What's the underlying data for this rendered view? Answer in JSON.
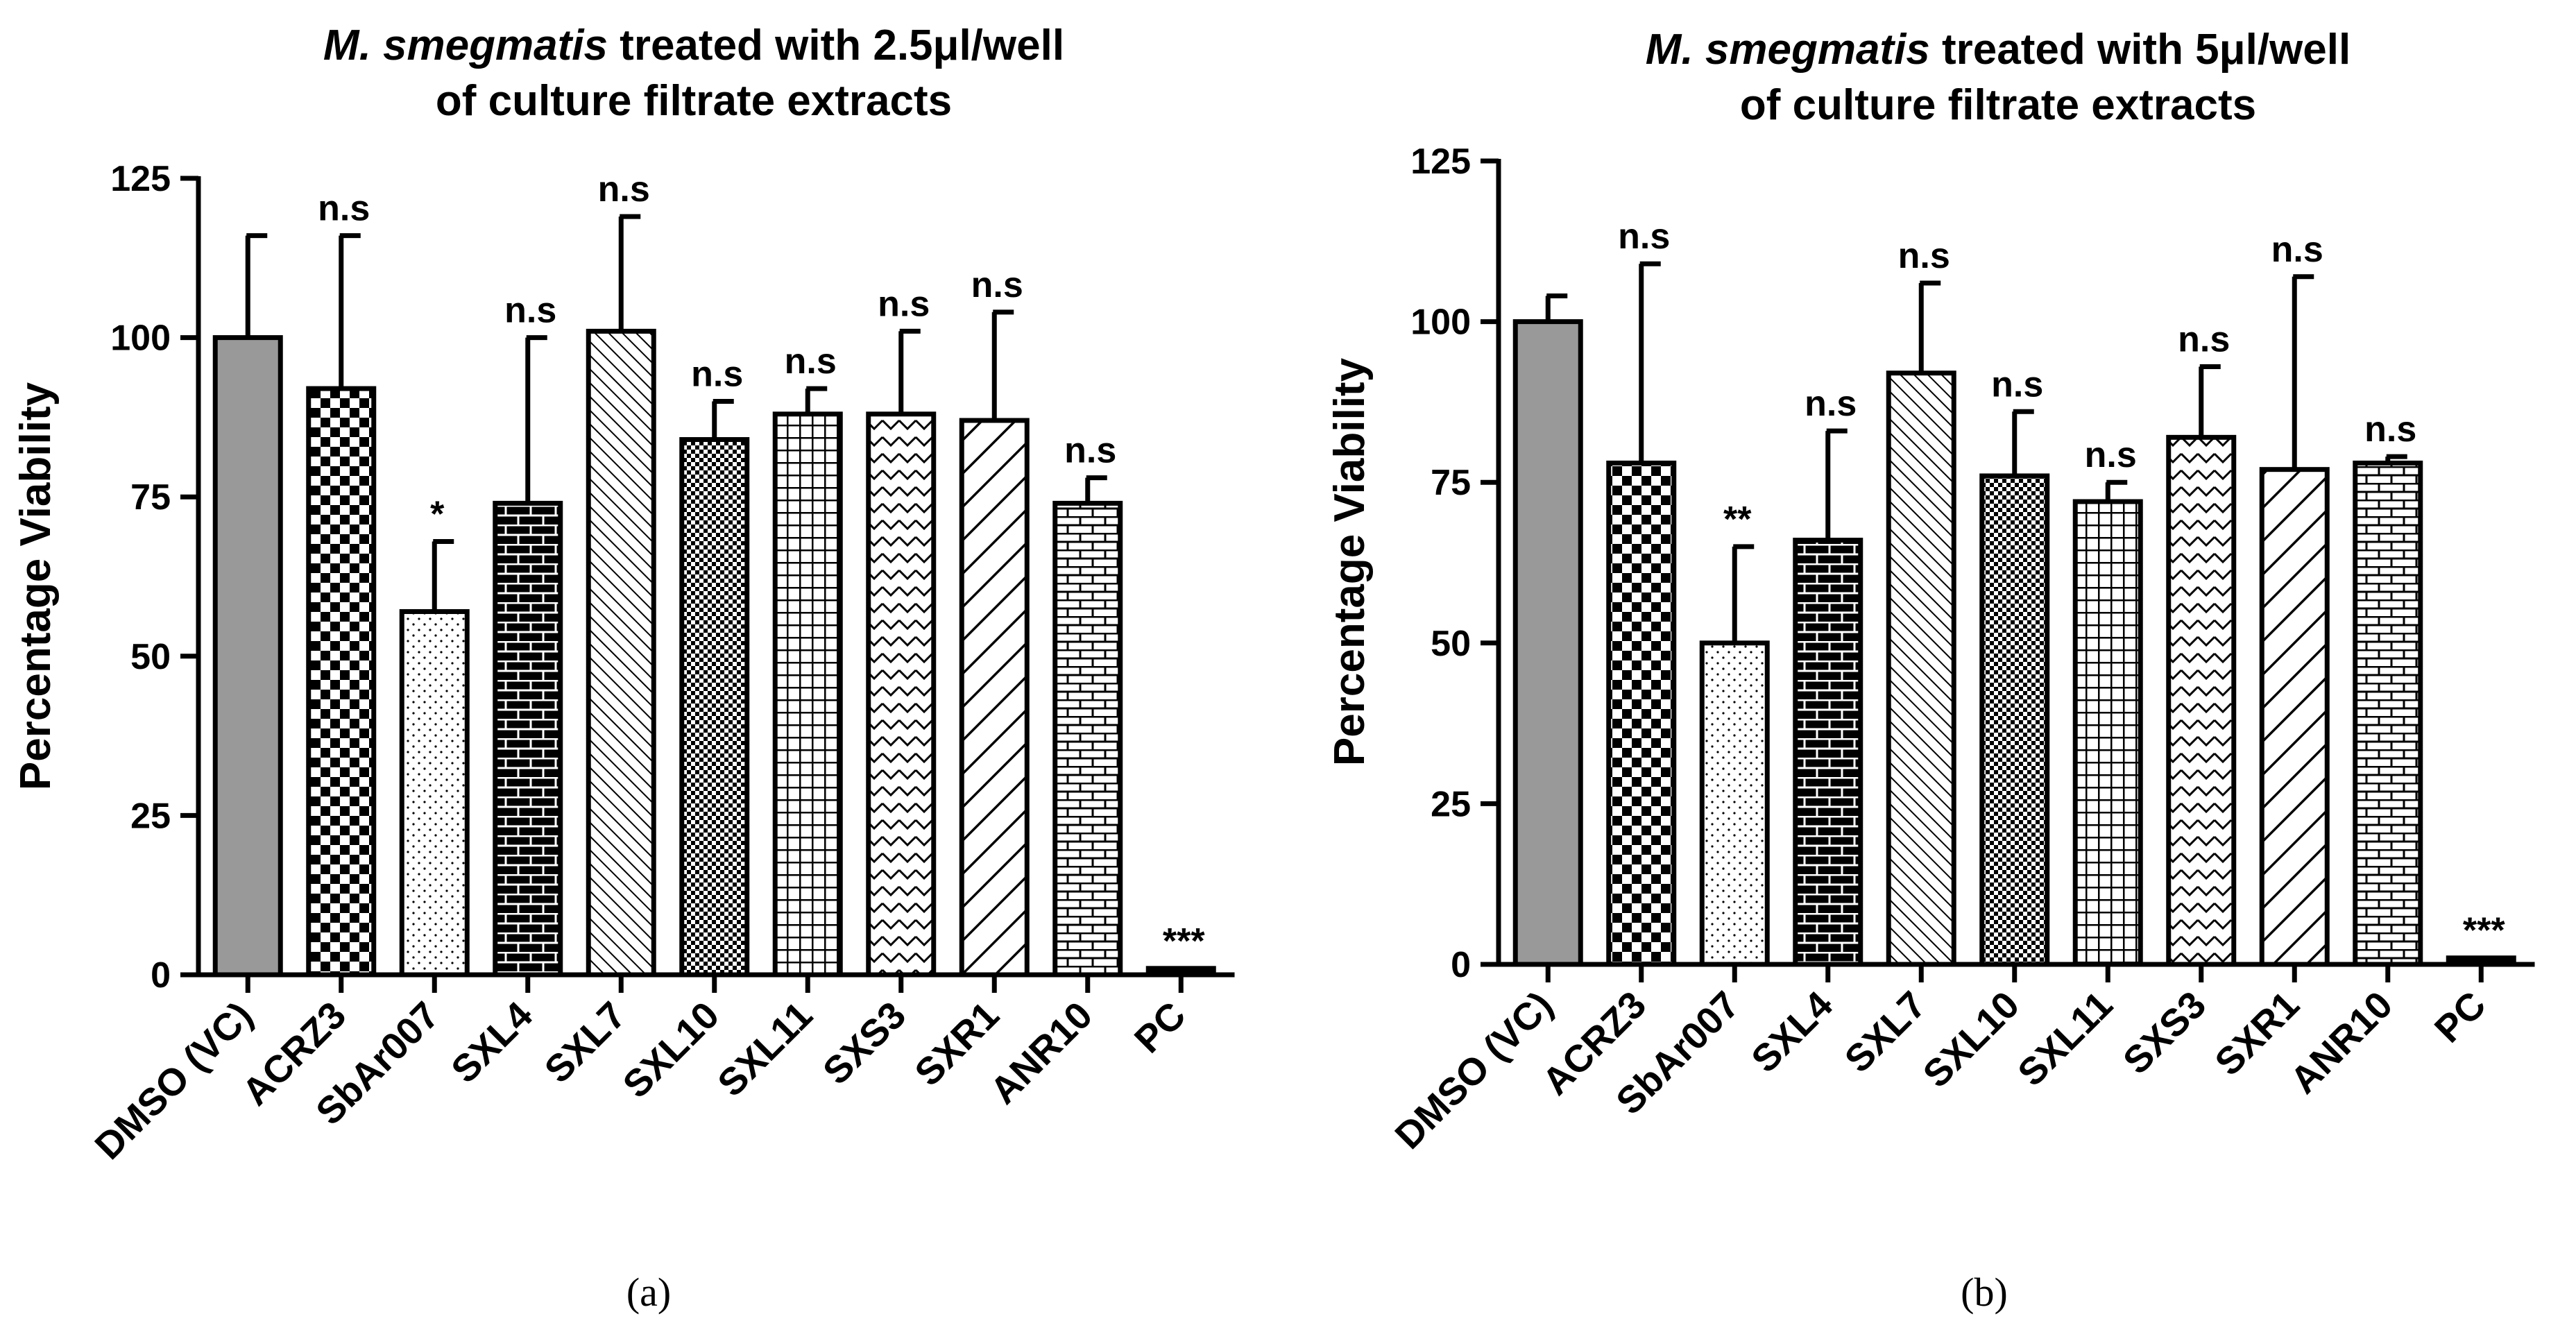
{
  "chart_data": [
    {
      "type": "bar",
      "panel_label": "(a)",
      "title": {
        "italic": "M. smegmatis",
        "rest_line1": " treated with 2.5μl/well",
        "line2": "of culture filtrate extracts"
      },
      "xlabel": "",
      "ylabel": "Percentage Viability",
      "ylim": [
        0,
        125
      ],
      "yticks": [
        "0",
        "25",
        "50",
        "75",
        "100",
        "125"
      ],
      "categories": [
        "DMSO (VC)",
        "ACRZ3",
        "SbAr007",
        "SXL4",
        "SXL7",
        "SXL10",
        "SXL11",
        "SXS3",
        "SXR1",
        "ANR10",
        "PC"
      ],
      "values": [
        100,
        92,
        57,
        74,
        101,
        84,
        88,
        88,
        87,
        74,
        1
      ],
      "error": [
        16,
        24,
        11,
        26,
        18,
        6,
        4,
        13,
        17,
        4,
        0
      ],
      "significance": [
        "",
        "n.s",
        "*",
        "n.s",
        "n.s",
        "n.s",
        "n.s",
        "n.s",
        "n.s",
        "n.s",
        "***"
      ]
    },
    {
      "type": "bar",
      "panel_label": "(b)",
      "title": {
        "italic": "M. smegmatis",
        "rest_line1": " treated with 5μl/well",
        "line2": "of culture filtrate extracts"
      },
      "xlabel": "",
      "ylabel": "Percentage Viability",
      "ylim": [
        0,
        125
      ],
      "yticks": [
        "0",
        "25",
        "50",
        "75",
        "100",
        "125"
      ],
      "categories": [
        "DMSO (VC)",
        "ACRZ3",
        "SbAr007",
        "SXL4",
        "SXL7",
        "SXL10",
        "SXL11",
        "SXS3",
        "SXR1",
        "ANR10",
        "PC"
      ],
      "values": [
        100,
        78,
        50,
        66,
        92,
        76,
        72,
        82,
        77,
        78,
        1
      ],
      "error": [
        4,
        31,
        15,
        17,
        14,
        10,
        3,
        11,
        30,
        1,
        0
      ],
      "significance": [
        "",
        "n.s",
        "**",
        "n.s",
        "n.s",
        "n.s",
        "n.s",
        "n.s",
        "n.s",
        "n.s",
        "***"
      ]
    }
  ],
  "colors": {
    "axis": "#000000",
    "control_fill": "#999999",
    "pattern_fill": "#ffffff"
  }
}
